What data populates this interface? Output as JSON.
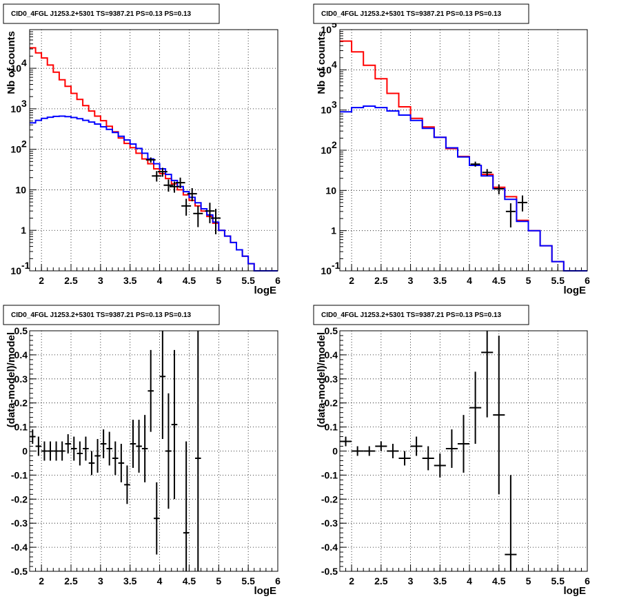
{
  "chart_data": [
    {
      "type": "line",
      "title": "CID0_4FGL J1253.2+5301 TS=9387.21 PS=0.13 PS=0.13",
      "xlabel": "logE",
      "ylabel": "Nb of counts",
      "xlim": [
        1.8,
        6
      ],
      "ylim": [
        0.1,
        90000
      ],
      "log_y": true,
      "grid": true,
      "x_ticks": [
        "2",
        "2.5",
        "3",
        "3.5",
        "4",
        "4.5",
        "5",
        "5.5",
        "6"
      ],
      "y_ticks": [
        {
          "v": 0.1,
          "label": "10",
          "exp": "-1"
        },
        {
          "v": 1,
          "label": "1",
          "exp": ""
        },
        {
          "v": 10,
          "label": "10",
          "exp": ""
        },
        {
          "v": 100,
          "label": "10",
          "exp": "2"
        },
        {
          "v": 1000,
          "label": "10",
          "exp": "3"
        },
        {
          "v": 10000,
          "label": "10",
          "exp": "4"
        }
      ],
      "series": [
        {
          "kind": "hist",
          "color": "#ff0000",
          "edges": [
            1.8,
            1.9,
            2.0,
            2.1,
            2.2,
            2.3,
            2.4,
            2.5,
            2.6,
            2.7,
            2.8,
            2.9,
            3.0,
            3.1,
            3.2,
            3.3,
            3.4,
            3.5,
            3.6,
            3.7,
            3.8,
            3.9,
            4.0,
            4.1,
            4.2,
            4.3,
            4.4,
            4.5,
            4.6,
            4.7,
            4.8,
            4.9,
            5.0,
            5.1,
            5.2,
            5.3,
            5.4,
            5.5,
            5.6,
            5.7,
            5.8,
            5.9,
            6.0
          ],
          "values": [
            32000,
            24000,
            18000,
            12000,
            8000,
            5200,
            3600,
            2400,
            1700,
            1200,
            880,
            660,
            510,
            370,
            270,
            190,
            140,
            110,
            80,
            58,
            44,
            33,
            25,
            19,
            14,
            10,
            7.5,
            5.5,
            4.0,
            3.0,
            2.2,
            1.5,
            1.0,
            0.72,
            0.5,
            0.33,
            0.23,
            0.15,
            0.1,
            0.1,
            0.1,
            0.1
          ]
        },
        {
          "kind": "hist",
          "color": "#0000ff",
          "edges": [
            1.8,
            1.9,
            2.0,
            2.1,
            2.2,
            2.3,
            2.4,
            2.5,
            2.6,
            2.7,
            2.8,
            2.9,
            3.0,
            3.1,
            3.2,
            3.3,
            3.4,
            3.5,
            3.6,
            3.7,
            3.8,
            3.9,
            4.0,
            4.1,
            4.2,
            4.3,
            4.4,
            4.5,
            4.6,
            4.7,
            4.8,
            4.9,
            5.0,
            5.1,
            5.2,
            5.3,
            5.4,
            5.5,
            5.6,
            5.7,
            5.8,
            5.9,
            6.0
          ],
          "values": [
            450,
            520,
            580,
            620,
            650,
            660,
            640,
            610,
            570,
            520,
            470,
            420,
            360,
            310,
            260,
            210,
            170,
            135,
            105,
            80,
            58,
            44,
            33,
            24,
            17,
            12,
            9,
            6.5,
            4.8,
            3.4,
            2.4,
            1.6,
            1.0,
            0.72,
            0.5,
            0.33,
            0.23,
            0.15,
            0.1,
            0.1,
            0.1,
            0.1
          ]
        },
        {
          "kind": "points",
          "color": "#000000",
          "x": [
            3.85,
            3.95,
            4.05,
            4.15,
            4.25,
            4.35,
            4.45,
            4.55,
            4.65,
            4.85,
            4.95
          ],
          "y": [
            55,
            22,
            28,
            13,
            12,
            15,
            4,
            8,
            2.6,
            3,
            2
          ],
          "ylo": [
            47,
            16,
            21,
            9,
            8.5,
            11,
            2.3,
            5.2,
            1.2,
            1.5,
            0.8
          ],
          "yhi": [
            63,
            29,
            35,
            18,
            16,
            20,
            6,
            11,
            4,
            4.8,
            3.4
          ]
        }
      ]
    },
    {
      "type": "line",
      "title": "CID0_4FGL J1253.2+5301 TS=9387.21 PS=0.13 PS=0.13",
      "xlabel": "logE",
      "ylabel": "Nb of counts",
      "xlim": [
        1.8,
        6
      ],
      "ylim": [
        0.1,
        100000
      ],
      "log_y": true,
      "grid": true,
      "x_ticks": [
        "2",
        "2.5",
        "3",
        "3.5",
        "4",
        "4.5",
        "5",
        "5.5",
        "6"
      ],
      "y_ticks": [
        {
          "v": 0.1,
          "label": "10",
          "exp": "-1"
        },
        {
          "v": 1,
          "label": "1",
          "exp": ""
        },
        {
          "v": 10,
          "label": "10",
          "exp": ""
        },
        {
          "v": 100,
          "label": "10",
          "exp": "2"
        },
        {
          "v": 1000,
          "label": "10",
          "exp": "3"
        },
        {
          "v": 10000,
          "label": "10",
          "exp": "4"
        },
        {
          "v": 100000,
          "label": "10",
          "exp": "5"
        }
      ],
      "series": [
        {
          "kind": "hist",
          "color": "#ff0000",
          "edges": [
            1.8,
            2.0,
            2.2,
            2.4,
            2.6,
            2.8,
            3.0,
            3.2,
            3.4,
            3.6,
            3.8,
            4.0,
            4.2,
            4.4,
            4.6,
            4.8,
            5.0,
            5.2,
            5.4,
            5.6,
            5.8,
            6.0
          ],
          "values": [
            52000,
            28000,
            13000,
            6000,
            2600,
            1200,
            620,
            380,
            210,
            110,
            70,
            42,
            25,
            12,
            7,
            1.8,
            1.0,
            0.42,
            0.17,
            0.1,
            0.1
          ]
        },
        {
          "kind": "hist",
          "color": "#0000ff",
          "edges": [
            1.8,
            2.0,
            2.2,
            2.4,
            2.6,
            2.8,
            3.0,
            3.2,
            3.4,
            3.6,
            3.8,
            4.0,
            4.2,
            4.4,
            4.6,
            4.8,
            5.0,
            5.2,
            5.4,
            5.6,
            5.8,
            6.0
          ],
          "values": [
            900,
            1150,
            1250,
            1150,
            950,
            750,
            550,
            350,
            210,
            115,
            68,
            42,
            23,
            11,
            6,
            1.7,
            1.0,
            0.42,
            0.17,
            0.1,
            0.1
          ]
        },
        {
          "kind": "points",
          "color": "#000000",
          "x": [
            4.1,
            4.3,
            4.5,
            4.7,
            4.9
          ],
          "y": [
            45,
            28,
            11,
            3,
            5
          ],
          "ylo": [
            39,
            23,
            8,
            1.2,
            3
          ],
          "yhi": [
            52,
            34,
            14,
            4.8,
            7.5
          ]
        }
      ]
    },
    {
      "type": "scatter",
      "title": "CID0_4FGL J1253.2+5301 TS=9387.21 PS=0.13 PS=0.13",
      "xlabel": "logE",
      "ylabel": "(data-model)/model",
      "xlim": [
        1.8,
        6
      ],
      "ylim": [
        -0.5,
        0.5
      ],
      "log_y": false,
      "grid": true,
      "x_ticks": [
        "2",
        "2.5",
        "3",
        "3.5",
        "4",
        "4.5",
        "5",
        "5.5",
        "6"
      ],
      "y_ticks": [
        "-0.5",
        "-0.4",
        "-0.3",
        "-0.2",
        "-0.1",
        "0",
        "0.1",
        "0.2",
        "0.3",
        "0.4",
        "0.5"
      ],
      "series": [
        {
          "kind": "errpoints",
          "color": "#000000",
          "halfwidth": 0.05,
          "x": [
            1.85,
            1.95,
            2.05,
            2.15,
            2.25,
            2.35,
            2.45,
            2.55,
            2.65,
            2.75,
            2.85,
            2.95,
            3.05,
            3.15,
            3.25,
            3.35,
            3.45,
            3.55,
            3.65,
            3.75,
            3.85,
            3.95,
            4.05,
            4.15,
            4.25,
            4.45,
            4.65
          ],
          "y": [
            0.06,
            0.02,
            0.0,
            0.0,
            0.0,
            0.0,
            0.03,
            0.01,
            -0.01,
            0.01,
            -0.05,
            -0.02,
            0.03,
            0.01,
            -0.03,
            -0.05,
            -0.14,
            0.03,
            0.02,
            0.01,
            0.25,
            -0.28,
            0.31,
            0.0,
            0.11,
            -0.34,
            -0.03
          ],
          "err": [
            0.03,
            0.04,
            0.04,
            0.04,
            0.04,
            0.04,
            0.04,
            0.05,
            0.05,
            0.05,
            0.05,
            0.07,
            0.06,
            0.07,
            0.07,
            0.08,
            0.08,
            0.1,
            0.11,
            0.14,
            0.17,
            0.15,
            0.26,
            0.24,
            0.31,
            0.38,
            0.55
          ]
        }
      ]
    },
    {
      "type": "scatter",
      "title": "CID0_4FGL J1253.2+5301 TS=9387.21 PS=0.13 PS=0.13",
      "xlabel": "logE",
      "ylabel": "(data-model)/model",
      "xlim": [
        1.8,
        6
      ],
      "ylim": [
        -0.5,
        0.5
      ],
      "log_y": false,
      "grid": true,
      "x_ticks": [
        "2",
        "2.5",
        "3",
        "3.5",
        "4",
        "4.5",
        "5",
        "5.5",
        "6"
      ],
      "y_ticks": [
        "-0.5",
        "-0.4",
        "-0.3",
        "-0.2",
        "-0.1",
        "0",
        "0.1",
        "0.2",
        "0.3",
        "0.4",
        "0.5"
      ],
      "series": [
        {
          "kind": "errpoints",
          "color": "#000000",
          "halfwidth": 0.1,
          "x": [
            1.9,
            2.1,
            2.3,
            2.5,
            2.7,
            2.9,
            3.1,
            3.3,
            3.5,
            3.7,
            3.9,
            4.1,
            4.3,
            4.5,
            4.7
          ],
          "y": [
            0.04,
            0.0,
            0.0,
            0.02,
            0.0,
            -0.03,
            0.02,
            -0.03,
            -0.06,
            0.01,
            0.03,
            0.18,
            0.41,
            0.15,
            -0.43
          ],
          "err": [
            0.02,
            0.02,
            0.02,
            0.02,
            0.03,
            0.03,
            0.04,
            0.05,
            0.05,
            0.08,
            0.12,
            0.15,
            0.27,
            0.33,
            0.33
          ]
        }
      ]
    }
  ]
}
